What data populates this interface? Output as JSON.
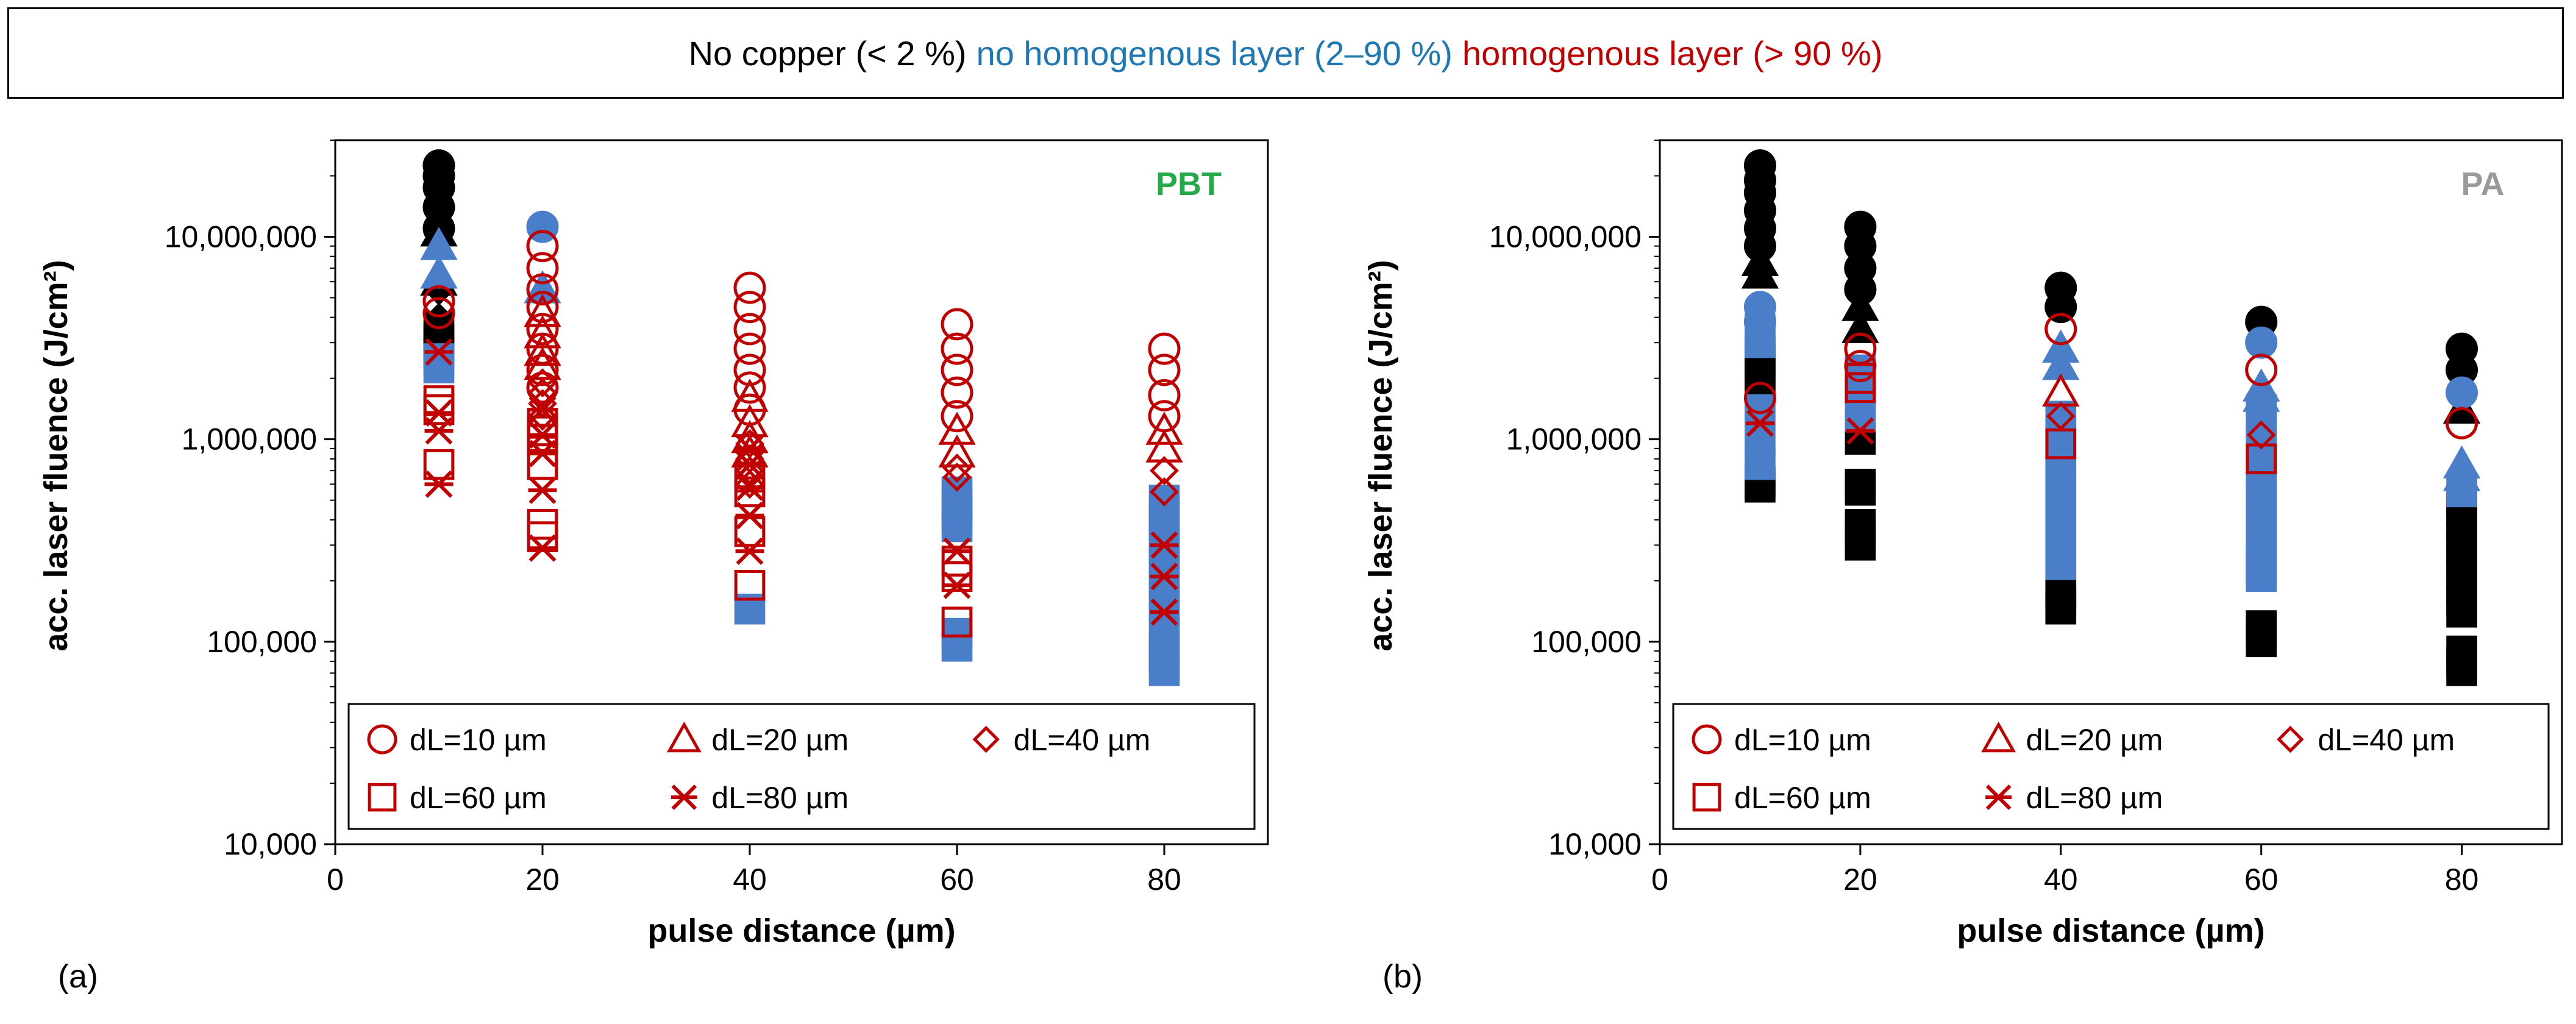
{
  "legend_banner": {
    "parts": [
      {
        "text": "No copper (< 2 %)",
        "color": "#000000"
      },
      {
        "text": "no homogenous layer (2–90 %)",
        "color": "#1f77b4"
      },
      {
        "text": "homogenous layer (> 90 %)",
        "color": "#c00000"
      }
    ]
  },
  "colors": {
    "none": "#000000",
    "partial": "#4a7ec9",
    "full": "#c00000",
    "pbt_label": "#27a84a",
    "pa_label": "#9a9a9a"
  },
  "chart_data": [
    {
      "type": "scatter",
      "panel_label": "(a)",
      "material": "PBT",
      "xlabel": "pulse distance (µm)",
      "ylabel": "acc. laser fluence (J/cm²)",
      "xlim": [
        0,
        90
      ],
      "ylim": [
        10000,
        30000000
      ],
      "y_scale": "log",
      "x_ticks": [
        0,
        20,
        40,
        60,
        80
      ],
      "y_ticks": [
        10000,
        100000,
        1000000,
        10000000
      ],
      "y_tick_labels": [
        "10,000",
        "100,000",
        "1,000,000",
        "10,000,000"
      ],
      "legend": [
        "dL=10 µm",
        "dL=20 µm",
        "dL=40 µm",
        "dL=60 µm",
        "dL=80 µm"
      ],
      "groups": [
        {
          "x": 10,
          "category": "none",
          "marker": "circle",
          "values": [
            22500000,
            20000000,
            17500000,
            14000000,
            11000000
          ]
        },
        {
          "x": 10,
          "category": "none",
          "marker": "triangle",
          "values": [
            10500000,
            6000000
          ]
        },
        {
          "x": 10,
          "category": "none",
          "marker": "diamond",
          "values": [
            5400000,
            4000000
          ]
        },
        {
          "x": 10,
          "category": "none",
          "marker": "square",
          "values": [
            3600000,
            3100000,
            2700000
          ]
        },
        {
          "x": 10,
          "category": "partial",
          "marker": "triangle",
          "values": [
            9000000,
            6500000
          ]
        },
        {
          "x": 10,
          "category": "partial",
          "marker": "square",
          "values": [
            2500000,
            2250000
          ]
        },
        {
          "x": 10,
          "category": "full",
          "marker": "circle",
          "values": [
            4800000,
            4200000
          ]
        },
        {
          "x": 10,
          "category": "full",
          "marker": "square",
          "values": [
            1550000,
            1400000,
            750000
          ]
        },
        {
          "x": 10,
          "category": "full",
          "marker": "star",
          "values": [
            2700000,
            1350000,
            1100000,
            600000
          ]
        },
        {
          "x": 20,
          "category": "partial",
          "marker": "circle",
          "values": [
            11200000
          ]
        },
        {
          "x": 20,
          "category": "partial",
          "marker": "triangle",
          "values": [
            5500000
          ]
        },
        {
          "x": 20,
          "category": "full",
          "marker": "circle",
          "values": [
            9000000,
            7000000,
            5500000,
            4500000,
            3500000,
            2800000,
            2200000,
            1800000
          ]
        },
        {
          "x": 20,
          "category": "full",
          "marker": "triangle",
          "values": [
            4200000,
            3300000,
            2700000,
            2300000
          ]
        },
        {
          "x": 20,
          "category": "full",
          "marker": "diamond",
          "values": [
            1900000,
            1700000,
            1500000,
            1300000
          ]
        },
        {
          "x": 20,
          "category": "full",
          "marker": "square",
          "values": [
            1200000,
            1100000,
            1000000,
            750000,
            380000,
            330000
          ]
        },
        {
          "x": 20,
          "category": "full",
          "marker": "star",
          "values": [
            1400000,
            1050000,
            850000,
            560000,
            290000
          ]
        },
        {
          "x": 40,
          "category": "full",
          "marker": "circle",
          "values": [
            5600000,
            4500000,
            3500000,
            2800000,
            2200000,
            1800000,
            1400000
          ]
        },
        {
          "x": 40,
          "category": "full",
          "marker": "triangle",
          "values": [
            1600000,
            1200000,
            1000000,
            850000
          ]
        },
        {
          "x": 40,
          "category": "full",
          "marker": "diamond",
          "values": [
            950000,
            800000,
            700000,
            600000
          ]
        },
        {
          "x": 40,
          "category": "full",
          "marker": "square",
          "values": [
            650000,
            550000,
            350000,
            190000
          ]
        },
        {
          "x": 40,
          "category": "full",
          "marker": "star",
          "values": [
            900000,
            750000,
            580000,
            420000,
            280000
          ]
        },
        {
          "x": 40,
          "category": "partial",
          "marker": "square",
          "values": [
            145000
          ]
        },
        {
          "x": 60,
          "category": "full",
          "marker": "circle",
          "values": [
            3700000,
            2800000,
            2200000,
            1700000,
            1300000
          ]
        },
        {
          "x": 60,
          "category": "full",
          "marker": "triangle",
          "values": [
            1100000,
            850000
          ]
        },
        {
          "x": 60,
          "category": "full",
          "marker": "diamond",
          "values": [
            720000,
            650000
          ]
        },
        {
          "x": 60,
          "category": "full",
          "marker": "square",
          "values": [
            250000,
            210000,
            125000
          ]
        },
        {
          "x": 60,
          "category": "full",
          "marker": "star",
          "values": [
            280000,
            190000
          ]
        },
        {
          "x": 60,
          "category": "partial",
          "marker": "square",
          "values": [
            550000,
            480000,
            420000,
            370000,
            110000,
            95000
          ]
        },
        {
          "x": 80,
          "category": "full",
          "marker": "circle",
          "values": [
            2800000,
            2200000,
            1650000,
            1300000
          ]
        },
        {
          "x": 80,
          "category": "full",
          "marker": "triangle",
          "values": [
            1100000,
            900000
          ]
        },
        {
          "x": 80,
          "category": "full",
          "marker": "diamond",
          "values": [
            700000,
            550000
          ]
        },
        {
          "x": 80,
          "category": "full",
          "marker": "star",
          "values": [
            300000,
            210000,
            140000
          ]
        },
        {
          "x": 80,
          "category": "partial",
          "marker": "square",
          "values": [
            500000,
            440000,
            380000,
            330000,
            280000,
            240000,
            200000,
            170000,
            140000,
            115000,
            95000,
            85000,
            78000,
            72000
          ]
        }
      ]
    },
    {
      "type": "scatter",
      "panel_label": "(b)",
      "material": "PA",
      "xlabel": "pulse distance (µm)",
      "ylabel": "acc. laser fluence (J/cm²)",
      "xlim": [
        0,
        90
      ],
      "ylim": [
        10000,
        30000000
      ],
      "y_scale": "log",
      "x_ticks": [
        0,
        20,
        40,
        60,
        80
      ],
      "y_ticks": [
        10000,
        100000,
        1000000,
        10000000
      ],
      "y_tick_labels": [
        "10,000",
        "100,000",
        "1,000,000",
        "10,000,000"
      ],
      "legend": [
        "dL=10 µm",
        "dL=20 µm",
        "dL=40 µm",
        "dL=60 µm",
        "dL=80 µm"
      ],
      "groups": [
        {
          "x": 10,
          "category": "none",
          "marker": "circle",
          "values": [
            22500000,
            19000000,
            16500000,
            13500000,
            11000000,
            9000000
          ]
        },
        {
          "x": 10,
          "category": "none",
          "marker": "triangle",
          "values": [
            7500000,
            6500000
          ]
        },
        {
          "x": 10,
          "category": "none",
          "marker": "square",
          "values": [
            2700000,
            2400000,
            2100000,
            1900000,
            620000,
            580000
          ]
        },
        {
          "x": 10,
          "category": "partial",
          "marker": "circle",
          "values": [
            4500000,
            3800000
          ]
        },
        {
          "x": 10,
          "category": "partial",
          "marker": "square",
          "values": [
            3500000,
            3000000,
            1400000,
            1000000,
            750000
          ]
        },
        {
          "x": 10,
          "category": "full",
          "marker": "circle",
          "values": [
            1600000
          ]
        },
        {
          "x": 10,
          "category": "full",
          "marker": "star",
          "values": [
            1200000
          ]
        },
        {
          "x": 20,
          "category": "none",
          "marker": "circle",
          "values": [
            11200000,
            9000000,
            7000000,
            5500000
          ]
        },
        {
          "x": 20,
          "category": "none",
          "marker": "triangle",
          "values": [
            4500000,
            3500000
          ]
        },
        {
          "x": 20,
          "category": "none",
          "marker": "square",
          "values": [
            1000000,
            600000,
            560000,
            380000,
            340000,
            300000
          ]
        },
        {
          "x": 20,
          "category": "partial",
          "marker": "square",
          "values": [
            2200000,
            1900000,
            1700000,
            1500000,
            1300000
          ]
        },
        {
          "x": 20,
          "category": "full",
          "marker": "circle",
          "values": [
            2800000,
            2300000
          ]
        },
        {
          "x": 20,
          "category": "full",
          "marker": "square",
          "values": [
            2000000,
            1800000
          ]
        },
        {
          "x": 20,
          "category": "full",
          "marker": "star",
          "values": [
            1100000
          ]
        },
        {
          "x": 40,
          "category": "none",
          "marker": "circle",
          "values": [
            5600000,
            4500000
          ]
        },
        {
          "x": 40,
          "category": "none",
          "marker": "square",
          "values": [
            185000,
            170000,
            155000,
            145000
          ]
        },
        {
          "x": 40,
          "category": "partial",
          "marker": "triangle",
          "values": [
            2800000,
            2300000
          ]
        },
        {
          "x": 40,
          "category": "partial",
          "marker": "square",
          "values": [
            1300000,
            1100000,
            950000,
            800000,
            700000,
            600000,
            520000,
            450000,
            380000,
            320000,
            270000,
            240000
          ]
        },
        {
          "x": 40,
          "category": "full",
          "marker": "circle",
          "values": [
            3500000
          ]
        },
        {
          "x": 40,
          "category": "full",
          "marker": "triangle",
          "values": [
            1700000
          ]
        },
        {
          "x": 40,
          "category": "full",
          "marker": "diamond",
          "values": [
            1300000
          ]
        },
        {
          "x": 40,
          "category": "full",
          "marker": "square",
          "values": [
            950000
          ]
        },
        {
          "x": 60,
          "category": "none",
          "marker": "circle",
          "values": [
            3800000
          ]
        },
        {
          "x": 60,
          "category": "none",
          "marker": "square",
          "values": [
            230000,
            120000,
            110000,
            100000
          ]
        },
        {
          "x": 60,
          "category": "partial",
          "marker": "circle",
          "values": [
            3000000
          ]
        },
        {
          "x": 60,
          "category": "partial",
          "marker": "triangle",
          "values": [
            1800000,
            1600000
          ]
        },
        {
          "x": 60,
          "category": "partial",
          "marker": "square",
          "values": [
            1400000,
            1200000,
            1000000,
            850000,
            720000,
            600000,
            500000,
            420000,
            350000,
            300000,
            260000,
            210000
          ]
        },
        {
          "x": 60,
          "category": "full",
          "marker": "circle",
          "values": [
            2200000
          ]
        },
        {
          "x": 60,
          "category": "full",
          "marker": "diamond",
          "values": [
            1050000
          ]
        },
        {
          "x": 60,
          "category": "full",
          "marker": "square",
          "values": [
            800000
          ]
        },
        {
          "x": 80,
          "category": "none",
          "marker": "circle",
          "values": [
            2800000,
            2200000
          ]
        },
        {
          "x": 80,
          "category": "none",
          "marker": "triangle",
          "values": [
            1400000
          ]
        },
        {
          "x": 80,
          "category": "none",
          "marker": "square",
          "values": [
            500000,
            440000,
            380000,
            330000,
            290000,
            250000,
            215000,
            185000,
            160000,
            140000,
            90000,
            80000,
            72000
          ]
        },
        {
          "x": 80,
          "category": "partial",
          "marker": "circle",
          "values": [
            1700000
          ]
        },
        {
          "x": 80,
          "category": "partial",
          "marker": "triangle",
          "values": [
            750000,
            650000
          ]
        },
        {
          "x": 80,
          "category": "partial",
          "marker": "square",
          "values": [
            550000
          ]
        },
        {
          "x": 80,
          "category": "full",
          "marker": "circle",
          "values": [
            1200000
          ]
        }
      ]
    }
  ]
}
